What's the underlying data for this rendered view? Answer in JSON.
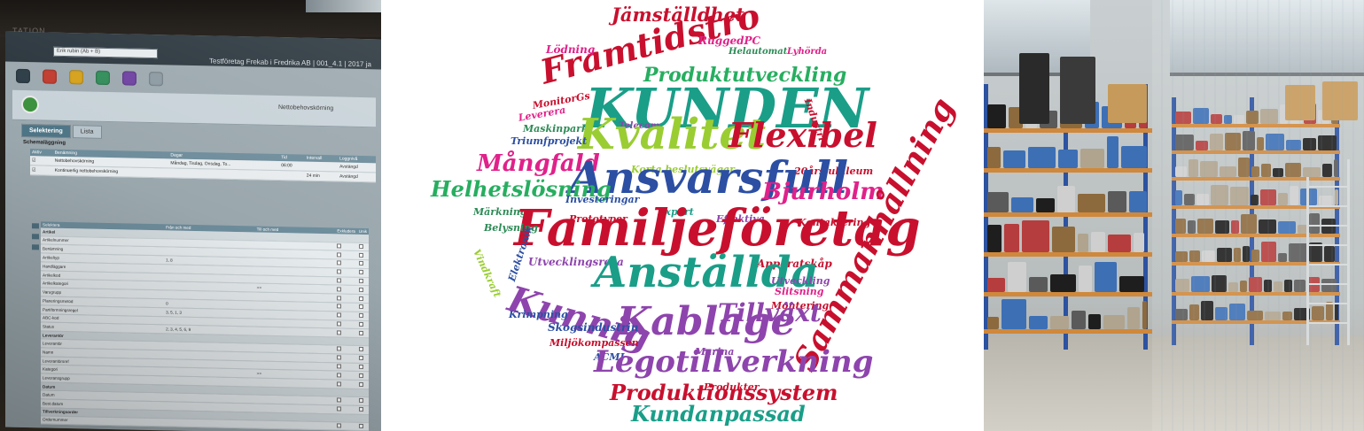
{
  "monitor_photo": {
    "bezel_brand": "TATION",
    "app": {
      "select_value": "Erik rubin (Ab + B)",
      "window_title": "Testföretag Frekab i Fredrika AB | 001_4.1 | 2017 ja",
      "toolbar_title": "Nettobehovskörning",
      "tabs": [
        {
          "label": "Selektering",
          "active": true
        },
        {
          "label": "Lista",
          "active": false
        }
      ],
      "schedule": {
        "section_label": "Schemaläggning",
        "headers": [
          "Aktiv",
          "Benämning",
          "Dagar",
          "Tid",
          "Intervall",
          "Loggnivå"
        ],
        "rows": [
          [
            "☑",
            "Nettobehovskörning",
            "Måndag, Tisdag, Onsdag, To...",
            "06:00",
            "",
            "Avstängd"
          ],
          [
            "☑",
            "Kontinuerlig nettobehovskörning",
            "",
            "",
            "24 min",
            "Avstängd"
          ]
        ]
      },
      "selection": {
        "headers": [
          "Selektera",
          "Från och med",
          "Till och med",
          "Exkludera",
          "Unik"
        ],
        "groups": [
          {
            "name": "Artikel",
            "rows": [
              [
                "Artikelnummer",
                "",
                ""
              ],
              [
                "Benämning",
                "",
                ""
              ],
              [
                "Artikeltyp",
                "1, 8",
                ""
              ],
              [
                "Handläggare",
                "",
                ""
              ],
              [
                "Artikelkod",
                "",
                ""
              ],
              [
                "Artikelkategori",
                "",
                ">>"
              ],
              [
                "Varugrupp",
                "",
                ""
              ],
              [
                "Planeringsmetod",
                "0",
                ""
              ],
              [
                "Partiformningsregel",
                "3, 5, 1, 3",
                ""
              ],
              [
                "ABC-kod",
                "",
                ""
              ],
              [
                "Status",
                "2, 3, 4, 5, 6, 9",
                ""
              ]
            ]
          },
          {
            "name": "Leverantör",
            "rows": [
              [
                "Leverantör",
                "",
                ""
              ],
              [
                "Namn",
                "",
                ""
              ],
              [
                "Leverantörsref",
                "",
                ""
              ],
              [
                "Kategori",
                "",
                ">>"
              ],
              [
                "Leveransgrupp",
                "",
                ""
              ]
            ]
          },
          {
            "name": "Datum",
            "rows": [
              [
                "Datum",
                "",
                ""
              ],
              [
                "Best.datum",
                "",
                ""
              ]
            ]
          },
          {
            "name": "Tillverkningsorder",
            "rows": [
              [
                "Ordernummer",
                "",
                ""
              ]
            ]
          }
        ]
      }
    }
  },
  "word_cloud": {
    "words": [
      {
        "text": "Jämställdhet",
        "color": "#c8102e",
        "size": 21
      },
      {
        "text": "Framtidstro",
        "color": "#c8102e",
        "size": 38
      },
      {
        "text": "Lödning",
        "color": "#e0218a",
        "size": 12
      },
      {
        "text": "RuggedPC",
        "color": "#e0218a",
        "size": 12
      },
      {
        "text": "Helautomat",
        "color": "#2e8b57",
        "size": 10
      },
      {
        "text": "Lyhörda",
        "color": "#e0218a",
        "size": 10
      },
      {
        "text": "Produktutveckling",
        "color": "#27ae60",
        "size": 22
      },
      {
        "text": "MonitorGs",
        "color": "#c8102e",
        "size": 11
      },
      {
        "text": "KUNDEN",
        "color": "#1a9e88",
        "size": 62
      },
      {
        "text": "Industri",
        "color": "#c8102e",
        "size": 11
      },
      {
        "text": "Leverera",
        "color": "#e0218a",
        "size": 11
      },
      {
        "text": "Maskinpark",
        "color": "#2e8b57",
        "size": 11
      },
      {
        "text": "Telecom",
        "color": "#8e44ad",
        "size": 10
      },
      {
        "text": "Kvalitet",
        "color": "#9acd32",
        "size": 48
      },
      {
        "text": "Flexibel",
        "color": "#c8102e",
        "size": 38
      },
      {
        "text": "Triumfprojekt",
        "color": "#2c4fa3",
        "size": 11
      },
      {
        "text": "Mångfald",
        "color": "#e0218a",
        "size": 26
      },
      {
        "text": "Korta beslutsvägar",
        "color": "#9acd32",
        "size": 11
      },
      {
        "text": "20årsjubileum",
        "color": "#c8102e",
        "size": 11
      },
      {
        "text": "Ansvarsfull",
        "color": "#2c4fa3",
        "size": 50
      },
      {
        "text": "Helhetslösning",
        "color": "#27ae60",
        "size": 24
      },
      {
        "text": "Bjurholm",
        "color": "#e0218a",
        "size": 26
      },
      {
        "text": "Sammanhållning",
        "color": "#c8102e",
        "size": 36
      },
      {
        "text": "Investeringar",
        "color": "#2c4fa3",
        "size": 11
      },
      {
        "text": "Märkning",
        "color": "#2e8b57",
        "size": 11
      },
      {
        "text": "Export",
        "color": "#1a9e88",
        "size": 11
      },
      {
        "text": "Prototyper",
        "color": "#c8102e",
        "size": 11
      },
      {
        "text": "Effektiva",
        "color": "#8e44ad",
        "size": 11
      },
      {
        "text": "Kontaktering",
        "color": "#c8102e",
        "size": 11
      },
      {
        "text": "Familjeföretag",
        "color": "#c8102e",
        "size": 56
      },
      {
        "text": "Belysning",
        "color": "#2e8b57",
        "size": 11
      },
      {
        "text": "Vindkraft",
        "color": "#9acd32",
        "size": 11
      },
      {
        "text": "Elektronik",
        "color": "#2c4fa3",
        "size": 11
      },
      {
        "text": "Utvecklingsresa",
        "color": "#8e44ad",
        "size": 12
      },
      {
        "text": "Apparatskåp",
        "color": "#c8102e",
        "size": 12
      },
      {
        "text": "Anställda",
        "color": "#1a9e88",
        "size": 48
      },
      {
        "text": "Utveckling",
        "color": "#8e44ad",
        "size": 11
      },
      {
        "text": "Slitsning",
        "color": "#e0218a",
        "size": 11
      },
      {
        "text": "Kunnig",
        "color": "#8e44ad",
        "size": 40
      },
      {
        "text": "Montering",
        "color": "#c8102e",
        "size": 11
      },
      {
        "text": "Tillväxt",
        "color": "#8e44ad",
        "size": 28
      },
      {
        "text": "Krimpning",
        "color": "#2c4fa3",
        "size": 11
      },
      {
        "text": "Kablage",
        "color": "#8e44ad",
        "size": 44
      },
      {
        "text": "Skogsindustrin",
        "color": "#2c4fa3",
        "size": 12
      },
      {
        "text": "Miljökompassen",
        "color": "#c8102e",
        "size": 11
      },
      {
        "text": "Marina",
        "color": "#8e44ad",
        "size": 11
      },
      {
        "text": "ACMI",
        "color": "#2c4fa3",
        "size": 11
      },
      {
        "text": "Legotillverkning",
        "color": "#8e44ad",
        "size": 34
      },
      {
        "text": "Produkter",
        "color": "#c8102e",
        "size": 11
      },
      {
        "text": "Produktionssystem",
        "color": "#c8102e",
        "size": 24
      },
      {
        "text": "Kundanpassad",
        "color": "#1a9e88",
        "size": 24
      }
    ]
  }
}
